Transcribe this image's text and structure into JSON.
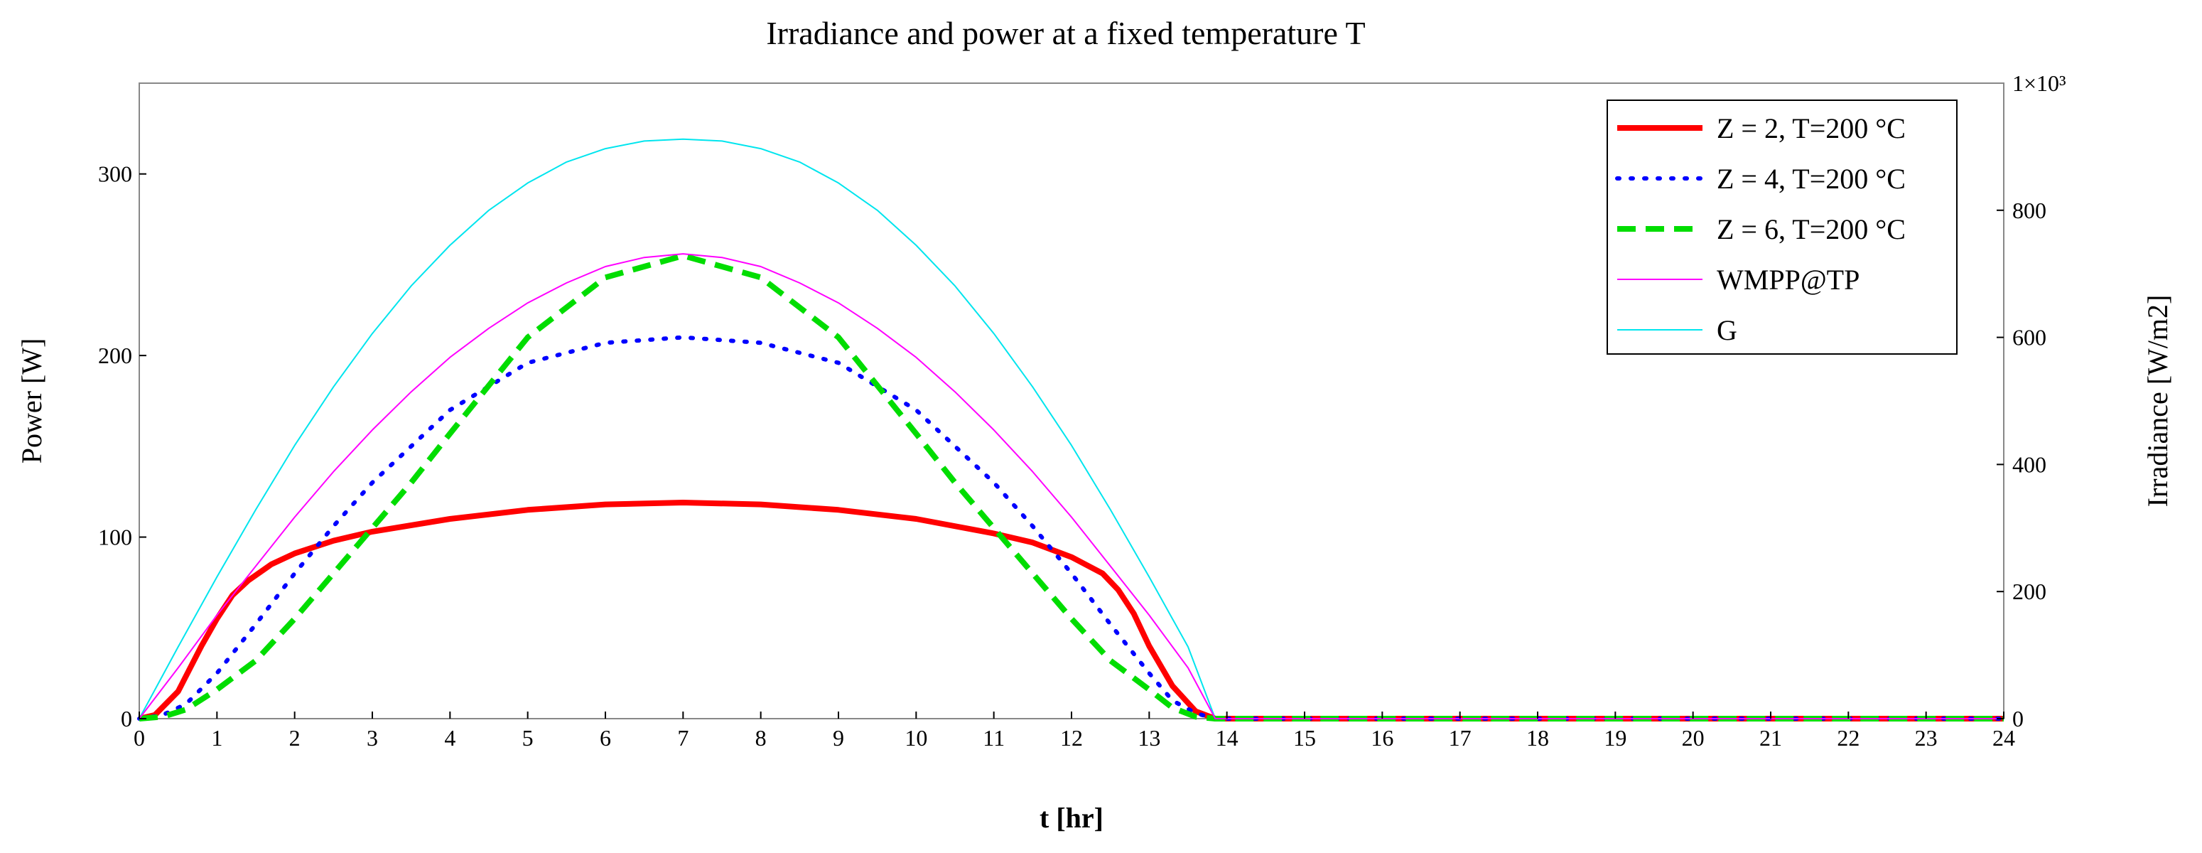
{
  "chart_data": {
    "type": "line",
    "title": "Irradiance and power at a fixed temperature T",
    "xlabel": "t [hr]",
    "ylabel": "Power [W]",
    "y2label": "Irradiance [W/m2]",
    "xlim": [
      0,
      24
    ],
    "ylim": [
      0,
      350
    ],
    "y2lim": [
      0,
      1000
    ],
    "x_ticks": [
      "0",
      "1",
      "2",
      "3",
      "4",
      "5",
      "6",
      "7",
      "8",
      "9",
      "10",
      "11",
      "12",
      "13",
      "14",
      "15",
      "16",
      "17",
      "18",
      "19",
      "20",
      "21",
      "22",
      "23",
      "24"
    ],
    "y_ticks": [
      "0",
      "100",
      "200",
      "300"
    ],
    "y2_ticks": [
      "0",
      "200",
      "400",
      "600",
      "800"
    ],
    "y2_top_label": "1×10³",
    "legend_position": "top-right",
    "series": [
      {
        "name": "Z = 2, T=200 °C",
        "axis": "left",
        "color": "#ff0000",
        "style": "solid-thick",
        "x": [
          0,
          0.2,
          0.5,
          0.8,
          1.0,
          1.2,
          1.4,
          1.7,
          2,
          2.5,
          3,
          4,
          5,
          6,
          7,
          8,
          9,
          10,
          11,
          11.5,
          12,
          12.4,
          12.6,
          12.8,
          13,
          13.3,
          13.6,
          13.85
        ],
        "values": [
          0,
          2,
          15,
          40,
          55,
          68,
          76,
          85,
          91,
          98,
          103,
          110,
          115,
          118,
          119,
          118,
          115,
          110,
          102,
          97,
          89,
          80,
          71,
          58,
          40,
          18,
          4,
          0
        ]
      },
      {
        "name": "Z = 4, T=200 °C",
        "axis": "left",
        "color": "#0000ff",
        "style": "dotted",
        "x": [
          0,
          0.3,
          0.6,
          1.0,
          1.5,
          2,
          2.5,
          3,
          4,
          5,
          6,
          7,
          8,
          9,
          10,
          11,
          11.5,
          12,
          12.5,
          13,
          13.3,
          13.6,
          13.85
        ],
        "values": [
          0,
          2,
          8,
          25,
          52,
          80,
          106,
          130,
          170,
          196,
          207,
          210,
          207,
          196,
          170,
          130,
          106,
          80,
          52,
          25,
          10,
          3,
          0
        ]
      },
      {
        "name": "Z = 6, T=200 °C",
        "axis": "left",
        "color": "#00dd00",
        "style": "dashed",
        "x": [
          0,
          0.3,
          0.6,
          1.0,
          1.5,
          2,
          2.5,
          3,
          3.5,
          4,
          5,
          6,
          7,
          8,
          9,
          10,
          10.5,
          11,
          11.5,
          12,
          12.5,
          13,
          13.3,
          13.6,
          13.85
        ],
        "values": [
          0,
          1,
          5,
          16,
          32,
          55,
          80,
          105,
          130,
          157,
          210,
          243,
          255,
          243,
          210,
          157,
          130,
          105,
          80,
          55,
          32,
          16,
          6,
          1,
          0
        ]
      },
      {
        "name": "WMPP@TP",
        "axis": "left",
        "color": "#ff00ff",
        "style": "thin",
        "x": [
          0,
          0.5,
          1,
          1.5,
          2,
          2.5,
          3,
          3.5,
          4,
          4.5,
          5,
          5.5,
          6,
          6.5,
          7,
          7.5,
          8,
          8.5,
          9,
          9.5,
          10,
          10.5,
          11,
          11.5,
          12,
          12.5,
          13,
          13.5,
          13.85
        ],
        "values": [
          0,
          28,
          57,
          84,
          111,
          136,
          159,
          180,
          199,
          215,
          229,
          240,
          249,
          254,
          256,
          254,
          249,
          240,
          229,
          215,
          199,
          180,
          159,
          136,
          111,
          84,
          57,
          28,
          0
        ]
      },
      {
        "name": "G",
        "axis": "right",
        "color": "#00e5ee",
        "style": "thin",
        "x": [
          0,
          0.5,
          1,
          1.5,
          2,
          2.5,
          3,
          3.5,
          4,
          4.5,
          5,
          5.5,
          6,
          6.5,
          7,
          7.5,
          8,
          8.5,
          9,
          9.5,
          10,
          10.5,
          11,
          11.5,
          12,
          12.5,
          13,
          13.5,
          13.85
        ],
        "values": [
          0,
          113,
          223,
          329,
          430,
          522,
          606,
          681,
          745,
          800,
          843,
          876,
          897,
          909,
          912,
          909,
          897,
          876,
          843,
          800,
          745,
          681,
          606,
          522,
          430,
          329,
          223,
          113,
          0
        ]
      }
    ]
  }
}
